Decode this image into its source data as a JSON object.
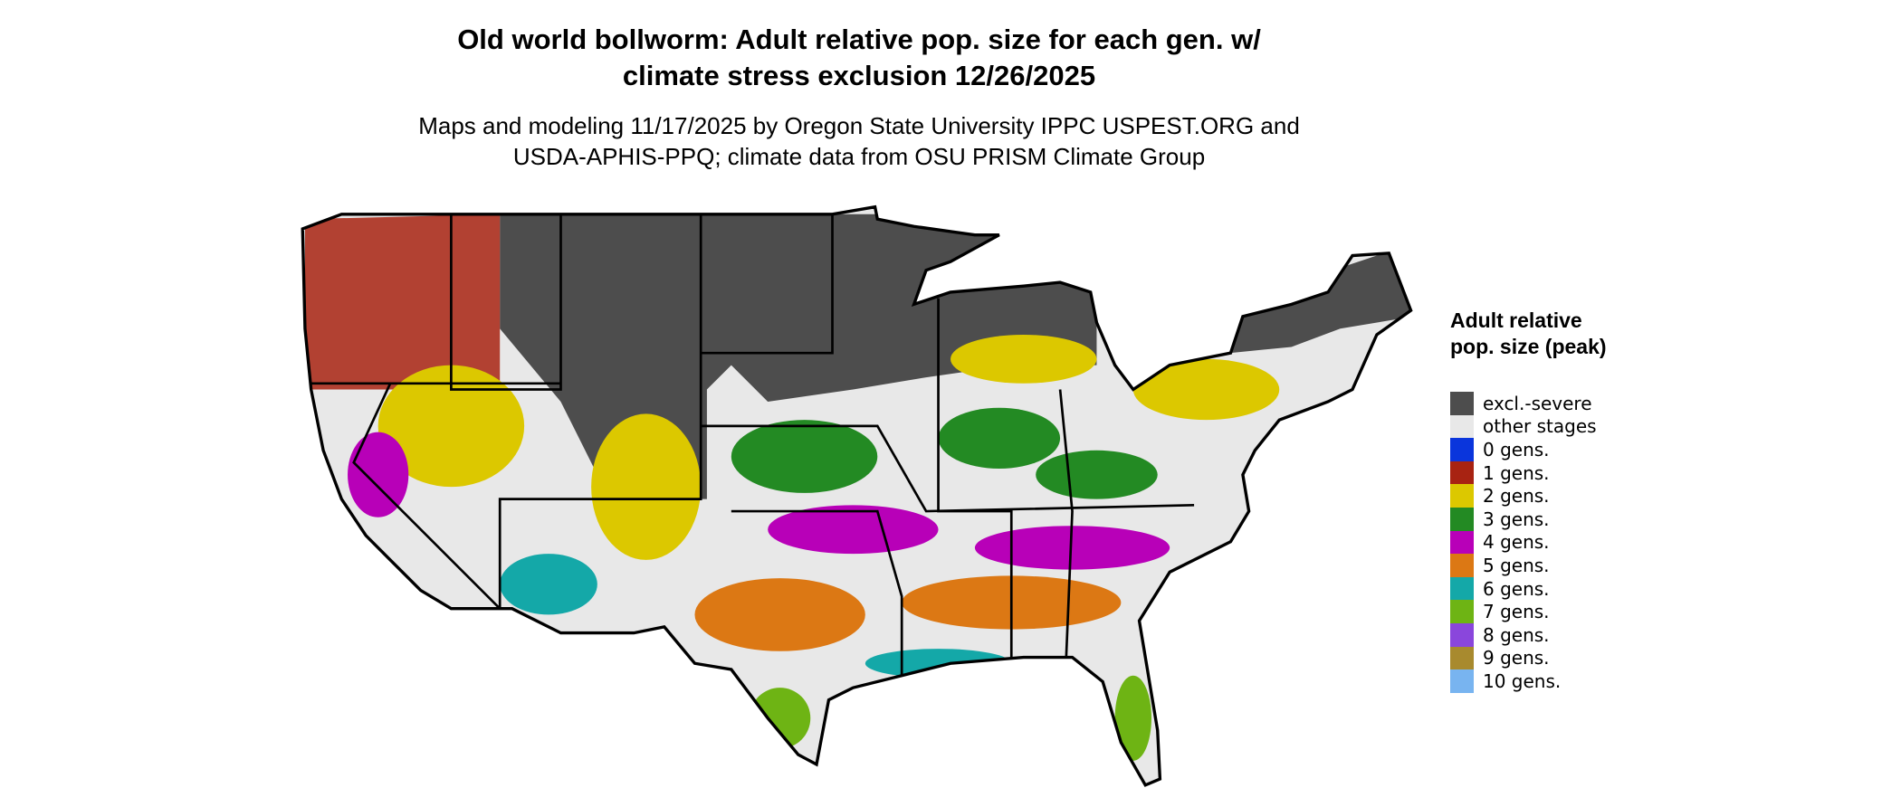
{
  "header": {
    "title": "Old world bollworm: Adult relative pop. size for each gen. w/ climate stress exclusion 12/26/2025",
    "subtitle": "Maps and modeling 11/17/2025 by Oregon State University IPPC USPEST.ORG and USDA-APHIS-PPQ; climate data from OSU PRISM Climate Group"
  },
  "legend": {
    "title": "Adult relative pop. size (peak)",
    "items": [
      {
        "label": "excl.-severe",
        "color": "#4d4d4d"
      },
      {
        "label": "other stages",
        "color": "#e8e8e8"
      },
      {
        "label": "0 gens.",
        "color": "#0a35dc"
      },
      {
        "label": "1 gens.",
        "color": "#a82312"
      },
      {
        "label": "2 gens.",
        "color": "#dcc800"
      },
      {
        "label": "3 gens.",
        "color": "#238a23"
      },
      {
        "label": "4 gens.",
        "color": "#b800b8"
      },
      {
        "label": "5 gens.",
        "color": "#dc7814"
      },
      {
        "label": "6 gens.",
        "color": "#14a8a8"
      },
      {
        "label": "7 gens.",
        "color": "#6eb414"
      },
      {
        "label": "8 gens.",
        "color": "#8a46dc"
      },
      {
        "label": "9 gens.",
        "color": "#a88a2e"
      },
      {
        "label": "10 gens.",
        "color": "#78b4f0"
      }
    ]
  }
}
